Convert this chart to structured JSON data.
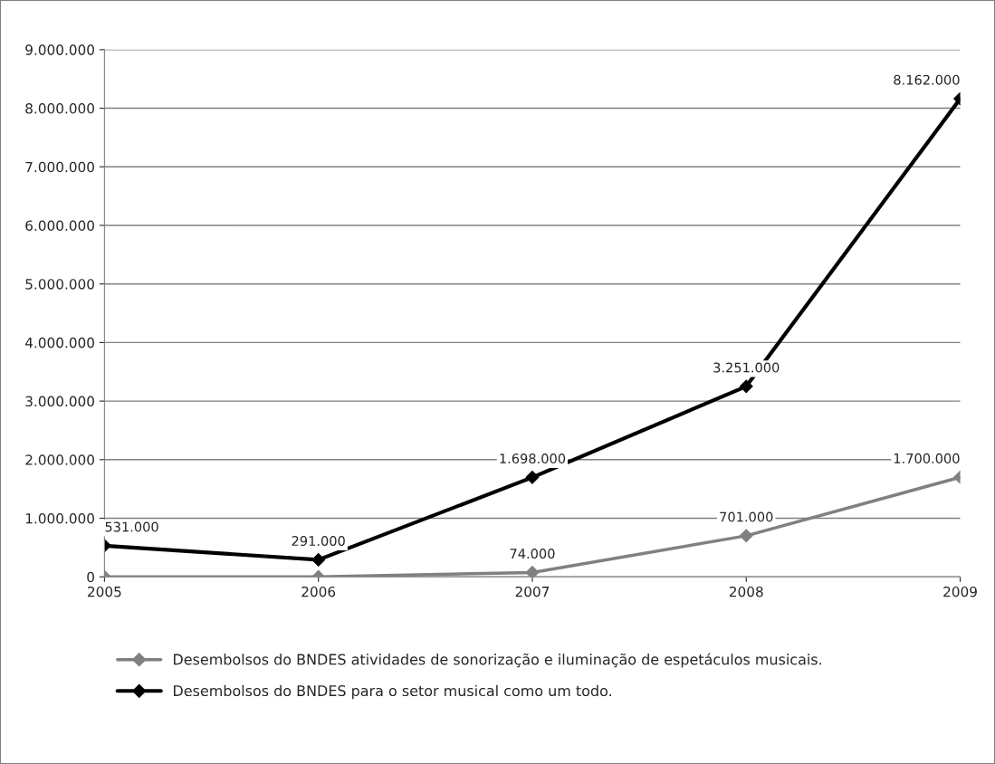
{
  "chart_data": {
    "type": "line",
    "categories": [
      "2005",
      "2006",
      "2007",
      "2008",
      "2009"
    ],
    "series": [
      {
        "name": "Desembolsos do BNDES atividades de sonorização e iluminação de espetáculos musicais.",
        "color": "#808080",
        "values": [
          0,
          0,
          74000,
          701000,
          1700000
        ],
        "value_labels": [
          null,
          null,
          "74.000",
          "701.000",
          "1.700.000"
        ]
      },
      {
        "name": "Desembolsos do BNDES para o setor musical como um todo.",
        "color": "#000000",
        "values": [
          531000,
          291000,
          1698000,
          3251000,
          8162000
        ],
        "value_labels": [
          "531.000",
          "291.000",
          "1.698.000",
          "3.251.000",
          "8.162.000"
        ]
      }
    ],
    "ylim": [
      0,
      9000000
    ],
    "yticks": [
      {
        "value": 0,
        "label": "0"
      },
      {
        "value": 1000000,
        "label": "1.000.000"
      },
      {
        "value": 2000000,
        "label": "2.000.000"
      },
      {
        "value": 3000000,
        "label": "3.000.000"
      },
      {
        "value": 4000000,
        "label": "4.000.000"
      },
      {
        "value": 5000000,
        "label": "5.000.000"
      },
      {
        "value": 6000000,
        "label": "6.000.000"
      },
      {
        "value": 7000000,
        "label": "7.000.000"
      },
      {
        "value": 8000000,
        "label": "8.000.000"
      },
      {
        "value": 9000000,
        "label": "9.000.000"
      }
    ],
    "grid": "y",
    "legend": "bottom",
    "marker": "diamond",
    "line_style": "solid"
  }
}
